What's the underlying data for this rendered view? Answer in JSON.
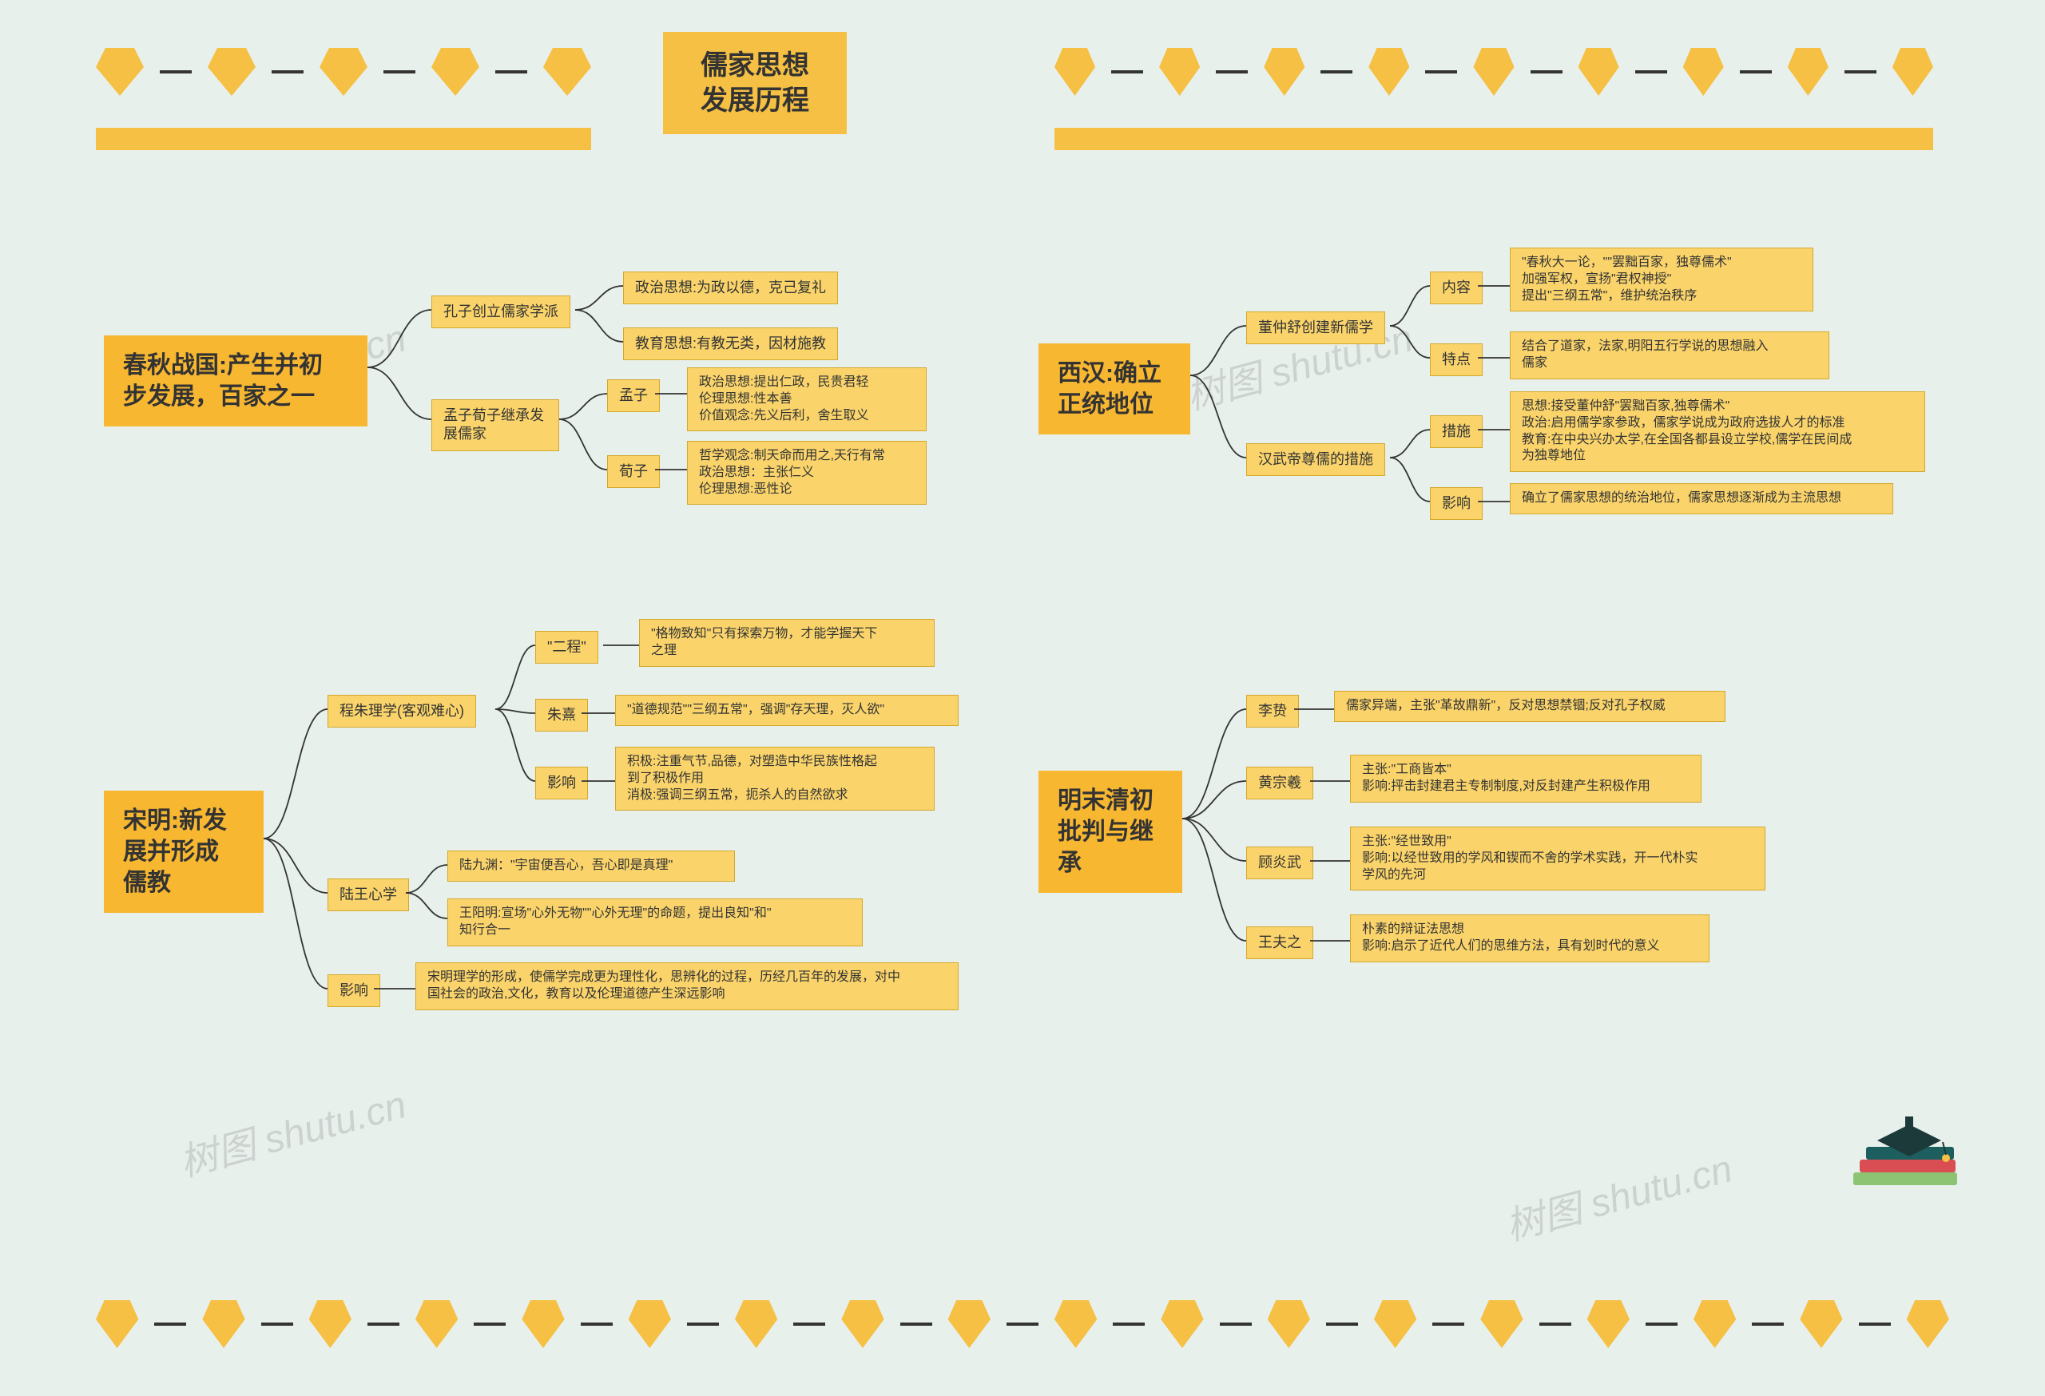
{
  "title": "儒家思想\n发展历程",
  "colors": {
    "background": "#e8f0ec",
    "title_box": "#f5c043",
    "l1_box": "#f7b731",
    "node_box": "#fad46b",
    "node_border": "#d4a82c",
    "connector": "#333333",
    "diamond": "#f5c043",
    "text": "#333333"
  },
  "font_sizes": {
    "title": 34,
    "l1": 30,
    "l2_l3": 18,
    "l4": 16
  },
  "watermark": "树图 shutu.cn",
  "sections": {
    "chunqiu": {
      "label": "春秋战国:产生并初\n步发展，百家之一",
      "children": [
        {
          "label": "孔子创立儒家学派",
          "children": [
            {
              "label": "政治思想:为政以德，克己复礼"
            },
            {
              "label": "教育思想:有教无类，因材施教"
            }
          ]
        },
        {
          "label": "孟子荀子继承发\n展儒家",
          "children": [
            {
              "label": "孟子",
              "children": [
                {
                  "label": "政治思想:提出仁政，民贵君轻\n伦理思想:性本善\n价值观念:先义后利，舍生取义"
                }
              ]
            },
            {
              "label": "荀子",
              "children": [
                {
                  "label": "哲学观念:制天命而用之,天行有常\n政治思想：主张仁义\n伦理思想:恶性论"
                }
              ]
            }
          ]
        }
      ]
    },
    "xihan": {
      "label": "西汉:确立\n正统地位",
      "children": [
        {
          "label": "董仲舒创建新儒学",
          "children": [
            {
              "label": "内容",
              "children": [
                {
                  "label": "\"春秋大一论，\"\"罢黜百家，独尊儒术\"\n加强军权，宣扬\"君权神授\"\n提出\"三纲五常\"，维护统治秩序"
                }
              ]
            },
            {
              "label": "特点",
              "children": [
                {
                  "label": "结合了道家，法家,明阳五行学说的思想融入\n儒家"
                }
              ]
            }
          ]
        },
        {
          "label": "汉武帝尊儒的措施",
          "children": [
            {
              "label": "措施",
              "children": [
                {
                  "label": "思想:接受董仲舒\"罢黜百家,独尊儒术\"\n政治:启用儒学家参政，儒家学说成为政府选拔人才的标准\n教育:在中央兴办太学,在全国各都县设立学校,儒学在民间成\n为独尊地位"
                }
              ]
            },
            {
              "label": "影响",
              "children": [
                {
                  "label": "确立了儒家思想的统治地位，儒家思想逐渐成为主流思想"
                }
              ]
            }
          ]
        }
      ]
    },
    "songming": {
      "label": "宋明:新发\n展并形成\n儒教",
      "children": [
        {
          "label": "程朱理学(客观难心)",
          "children": [
            {
              "label": "\"二程\"",
              "children": [
                {
                  "label": "\"格物致知\"只有探索万物，才能学握天下\n之理"
                }
              ]
            },
            {
              "label": "朱熹",
              "children": [
                {
                  "label": "\"道德规范\"\"三纲五常\"，强调\"存天理，灭人欲\""
                }
              ]
            },
            {
              "label": "影响",
              "children": [
                {
                  "label": "积极:注重气节,品德，对塑造中华民族性格起\n到了积极作用\n消极:强调三纲五常，扼杀人的自然欲求"
                }
              ]
            }
          ]
        },
        {
          "label": "陆王心学",
          "children": [
            {
              "label": "陆九渊：\"宇宙便吾心，吾心即是真理\""
            },
            {
              "label": "王阳明:宣场\"心外无物\"\"心外无理\"的命题，提出良知\"和\"\n知行合一"
            }
          ]
        },
        {
          "label": "影响",
          "children": [
            {
              "label": "宋明理学的形成，使儒学完成更为理性化，思辨化的过程，历经几百年的发展，对中\n国社会的政治,文化，教育以及伦理道德产生深远影响"
            }
          ]
        }
      ]
    },
    "mingmo": {
      "label": "明末清初\n批判与继\n承",
      "children": [
        {
          "label": "李贽",
          "children": [
            {
              "label": "儒家异端，主张\"革故鼎新\"，反对思想禁锢;反对孔子权威"
            }
          ]
        },
        {
          "label": "黄宗羲",
          "children": [
            {
              "label": "主张:\"工商皆本\"\n影响:抨击封建君主专制制度,对反封建产生积极作用"
            }
          ]
        },
        {
          "label": "顾炎武",
          "children": [
            {
              "label": "主张:\"经世致用\"\n影响:以经世致用的学风和锲而不舍的学术实践，开一代朴实\n学风的先河"
            }
          ]
        },
        {
          "label": "王夫之",
          "children": [
            {
              "label": "朴素的辩证法思想\n影响:启示了近代人们的思维方法，具有划时代的意义"
            }
          ]
        }
      ]
    }
  }
}
